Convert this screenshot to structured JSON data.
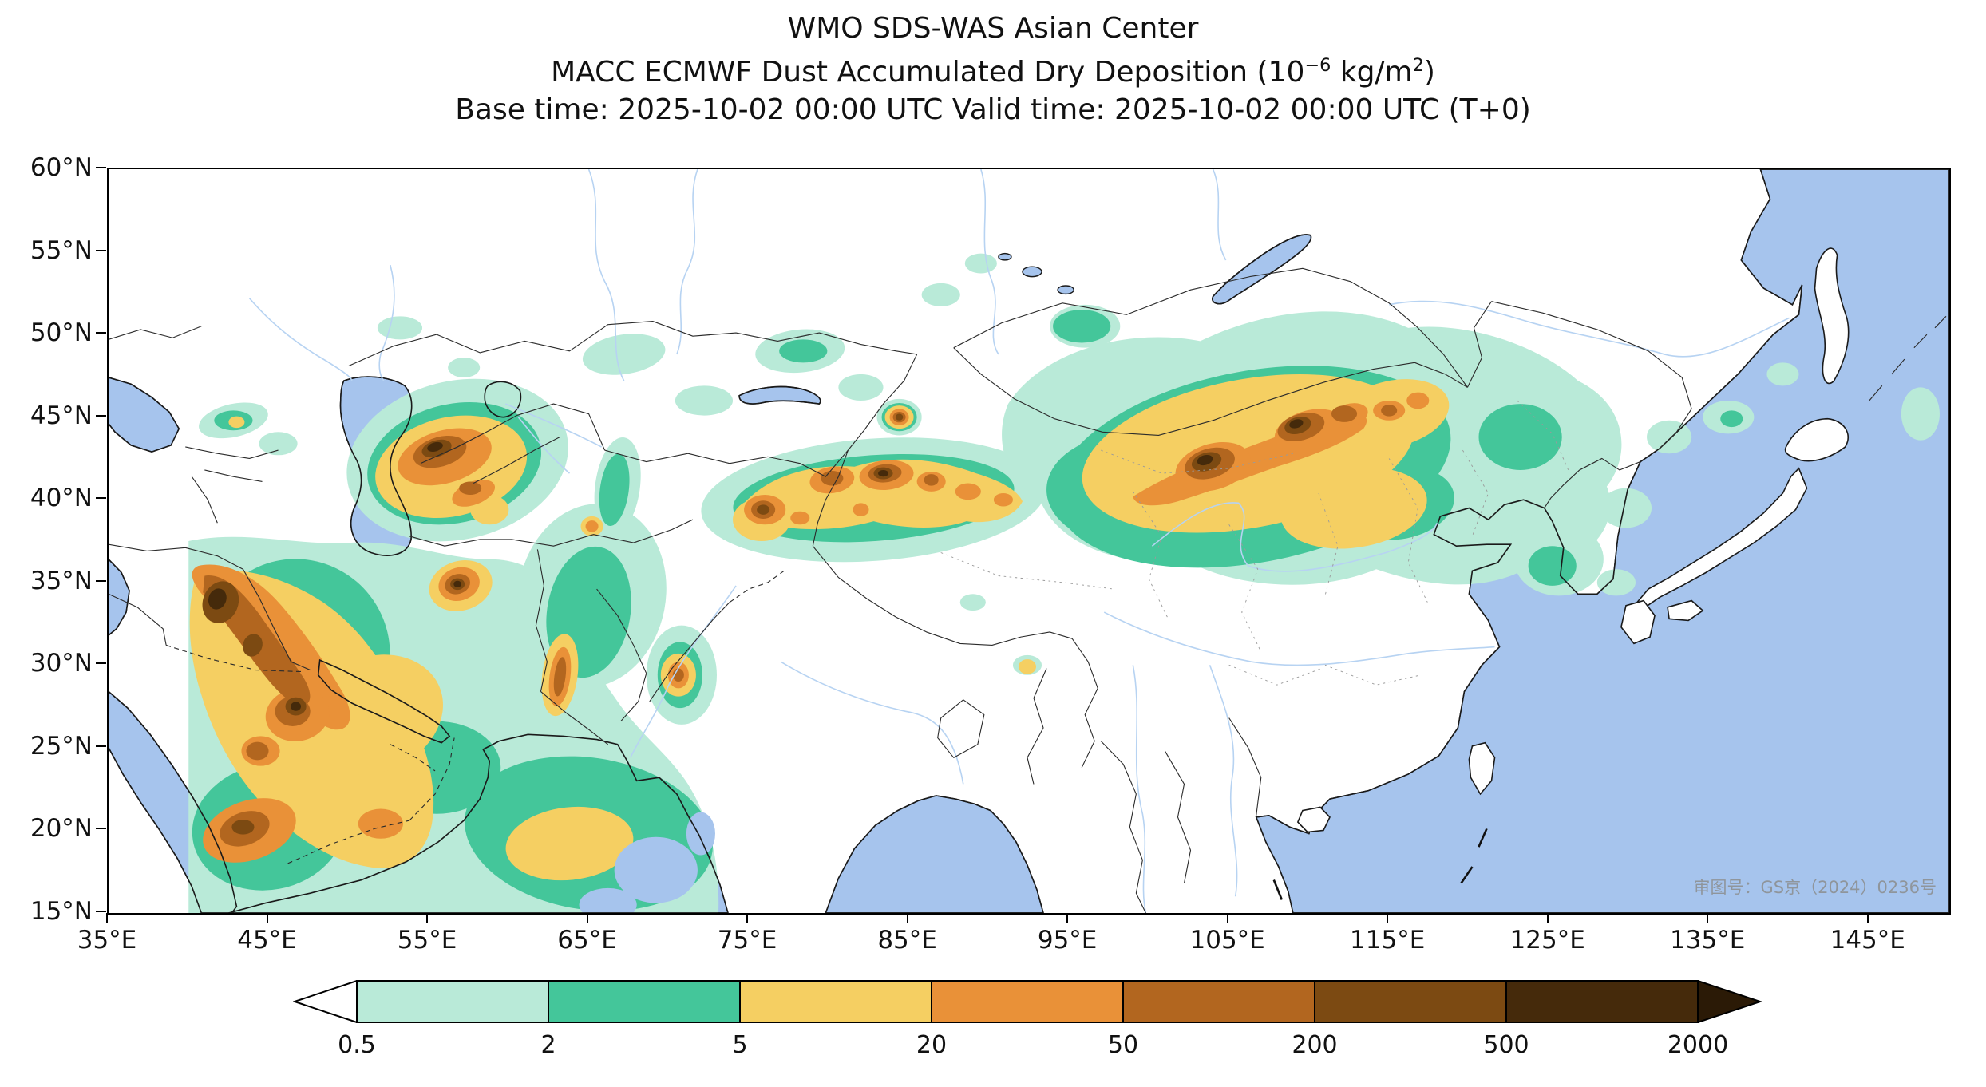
{
  "title": {
    "line1": "WMO SDS-WAS Asian Center",
    "line2_pre": "MACC ECMWF Dust Accumulated Dry Deposition (10",
    "line2_sup1": "−6",
    "line2_mid": " kg/m",
    "line2_sup2": "2",
    "line2_post": ")",
    "line3": "Base time: 2025-10-02 00:00 UTC Valid time: 2025-10-02 00:00 UTC (T+0)"
  },
  "map": {
    "approval_note": "审图号：GS京（2024）0236号",
    "x_ticks": [
      "35°E",
      "45°E",
      "55°E",
      "65°E",
      "75°E",
      "85°E",
      "95°E",
      "105°E",
      "115°E",
      "125°E",
      "135°E",
      "145°E"
    ],
    "y_ticks": [
      "60°N",
      "55°N",
      "50°N",
      "45°N",
      "40°N",
      "35°N",
      "30°N",
      "25°N",
      "20°N",
      "15°N"
    ]
  },
  "chart_data": {
    "type": "heatmap",
    "source": "WMO SDS-WAS Asian Center",
    "title": "MACC ECMWF Dust Accumulated Dry Deposition (10^-6 kg/m^2)",
    "subtitle": "Base time: 2025-10-02 00:00 UTC Valid time: 2025-10-02 00:00 UTC (T+0)",
    "projection": "longitude-latitude map",
    "lon_range_deg_east": [
      35,
      150
    ],
    "lat_range_deg_north": [
      15,
      60
    ],
    "x_tick_labels": [
      "35°E",
      "45°E",
      "55°E",
      "65°E",
      "75°E",
      "85°E",
      "95°E",
      "105°E",
      "115°E",
      "125°E",
      "135°E",
      "145°E"
    ],
    "y_tick_labels": [
      "60°N",
      "55°N",
      "50°N",
      "45°N",
      "40°N",
      "35°N",
      "30°N",
      "25°N",
      "20°N",
      "15°N"
    ],
    "grid": false,
    "colorbar": {
      "units": "10^-6 kg/m^2",
      "orientation": "horizontal",
      "levels": [
        0.5,
        2,
        5,
        20,
        50,
        200,
        500,
        2000
      ],
      "level_labels": [
        "0.5",
        "2",
        "5",
        "20",
        "50",
        "200",
        "500",
        "2000"
      ],
      "cell_colors": [
        "#b9ead8",
        "#44c69a",
        "#f5cf62",
        "#e99138",
        "#b2661f",
        "#7c4a12",
        "#452a0b"
      ],
      "under_color": "#ffffff",
      "over_color": "#2b1a06",
      "bands": [
        {
          "range": "<0.5",
          "color": "#ffffff"
        },
        {
          "range": "0.5-2",
          "color": "#b9ead8"
        },
        {
          "range": "2-5",
          "color": "#44c69a"
        },
        {
          "range": "5-20",
          "color": "#f5cf62"
        },
        {
          "range": "20-50",
          "color": "#e99138"
        },
        {
          "range": "50-200",
          "color": "#b2661f"
        },
        {
          "range": "200-500",
          "color": "#7c4a12"
        },
        {
          "range": "500-2000",
          "color": "#452a0b"
        },
        {
          "range": ">2000",
          "color": "#2b1a06"
        }
      ]
    },
    "ocean_color": "#a6c4ed",
    "visual_summary": [
      "Strong deposition band (200 to >2000) from SE Turkey across Iraq toward the Persian Gulf (40-48E, 24-37N)",
      "Karakum/Turkmenistan maximum (50-60E, 38-45N) with core >500 near 56E 43N and a dark spot near 56.5E 34.5N",
      "Tarim Basin chain of maxima (73-92E, 38-43N), strongest 200->2000 near 83-85E 41-42N and 75.5E 39.5N",
      "Gobi/southern Mongolia band (98-118E, 40-47N) with cores >500 near 103E 42.5N and 109E 44.5N",
      "Isolated maximum near 84E 45.5N; small maxima near 62-64E 27-31N and 70E 29N",
      "Light deposition (0.5-20) over the Arabian Sea, Kazakhstan, NE China and Korea; sharp western cutoff of the dust field at 40E"
    ]
  }
}
